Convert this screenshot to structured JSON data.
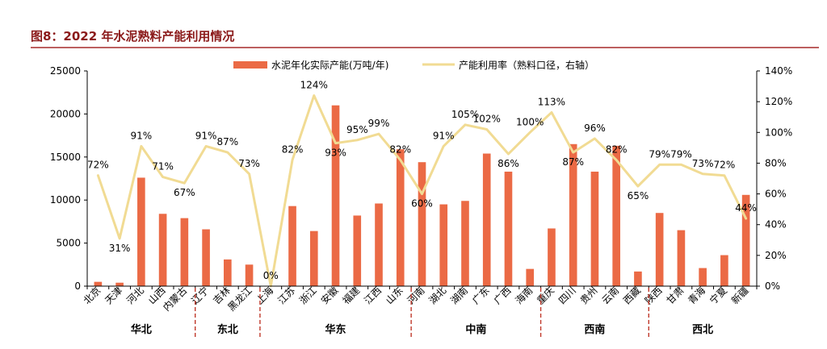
{
  "figure": {
    "title": "图8：2022 年水泥熟料产能利用情况"
  },
  "colors": {
    "bar": "#EB6A45",
    "line": "#F1DB93",
    "title": "#8B1A1A",
    "title_rule": "#A52A2A",
    "region_divider": "#C0392B",
    "axis_text": "#000000"
  },
  "chart_data": {
    "type": "bar",
    "combo": "bar + line (secondary axis)",
    "categories": [
      "北京",
      "天津",
      "河北",
      "山西",
      "内蒙古",
      "辽宁",
      "吉林",
      "黑龙江",
      "上海",
      "江苏",
      "浙江",
      "安徽",
      "福建",
      "江西",
      "山东",
      "河南",
      "湖北",
      "湖南",
      "广东",
      "广西",
      "海南",
      "重庆",
      "四川",
      "贵州",
      "云南",
      "西藏",
      "陕西",
      "甘肃",
      "青海",
      "宁夏",
      "新疆"
    ],
    "series": [
      {
        "name": "水泥年化实际产能(万吨/年)",
        "type": "bar",
        "axis": "left",
        "values": [
          500,
          400,
          12600,
          8400,
          7900,
          6600,
          3100,
          2500,
          0,
          9300,
          6400,
          21000,
          8200,
          9600,
          15900,
          14400,
          9500,
          9900,
          15400,
          13300,
          2000,
          6700,
          16500,
          13300,
          16300,
          1700,
          8500,
          6500,
          2100,
          3600,
          10600
        ]
      },
      {
        "name": "产能利用率（熟料口径，右轴）",
        "type": "line",
        "axis": "right",
        "values": [
          72,
          31,
          91,
          71,
          67,
          91,
          87,
          73,
          0,
          82,
          124,
          93,
          95,
          99,
          82,
          60,
          91,
          105,
          102,
          86,
          100,
          113,
          87,
          96,
          82,
          65,
          79,
          79,
          73,
          72,
          44
        ],
        "labels": [
          "72%",
          "31%",
          "91%",
          "71%",
          "67%",
          "91%",
          "87%",
          "73%",
          "0%",
          "82%",
          "124%",
          "93%",
          "95%",
          "99%",
          "82%",
          "60%",
          "91%",
          "105%",
          "102%",
          "86%",
          "100%",
          "113%",
          "87%",
          "96%",
          "82%",
          "65%",
          "79%",
          "79%",
          "73%",
          "72%",
          "44%"
        ]
      }
    ],
    "y_left": {
      "ylim": [
        0,
        25000
      ],
      "ticks": [
        "0",
        "5000",
        "10000",
        "15000",
        "20000",
        "25000"
      ]
    },
    "y_right": {
      "ylim": [
        0,
        140
      ],
      "ticks": [
        "0%",
        "20%",
        "40%",
        "60%",
        "80%",
        "100%",
        "120%",
        "140%"
      ]
    },
    "regions": [
      {
        "name": "华北",
        "start": 0,
        "end": 4
      },
      {
        "name": "东北",
        "start": 5,
        "end": 7
      },
      {
        "name": "华东",
        "start": 8,
        "end": 14
      },
      {
        "name": "中南",
        "start": 15,
        "end": 20
      },
      {
        "name": "西南",
        "start": 21,
        "end": 25
      },
      {
        "name": "西北",
        "start": 26,
        "end": 30
      }
    ],
    "legend_position": "top-center",
    "grid": false
  }
}
